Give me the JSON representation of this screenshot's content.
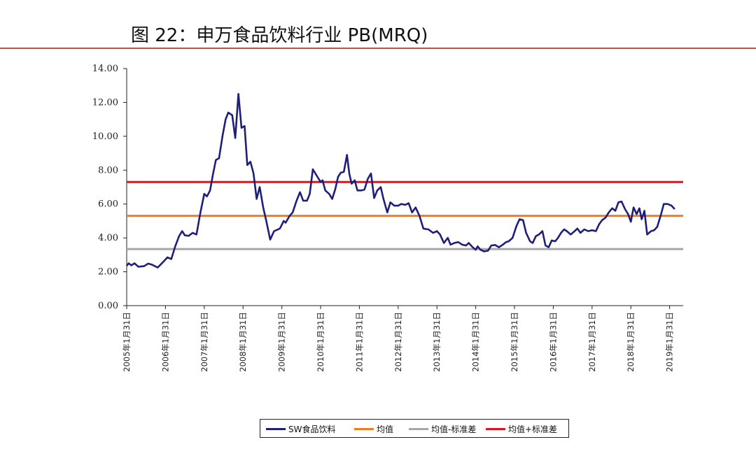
{
  "title": "图 22：申万食品饮料行业 PB(MRQ)",
  "colors": {
    "title_rule": "#c0504d",
    "sw": "#1f1f7a",
    "mean": "#f47c20",
    "mean_minus": "#a6a6a6",
    "mean_plus": "#e0141e"
  },
  "chart_data": {
    "type": "line",
    "title": "图 22：申万食品饮料行业 PB(MRQ)",
    "xlabel": "",
    "ylabel": "",
    "ylim": [
      0,
      14
    ],
    "xlim": [
      2005.0,
      2019.35
    ],
    "yticks": [
      "0.00",
      "2.00",
      "4.00",
      "6.00",
      "8.00",
      "10.00",
      "12.00",
      "14.00"
    ],
    "xticks": [
      {
        "t": 2005,
        "label": "2005年1月31日"
      },
      {
        "t": 2006,
        "label": "2006年1月31日"
      },
      {
        "t": 2007,
        "label": "2007年1月31日"
      },
      {
        "t": 2008,
        "label": "2008年1月31日"
      },
      {
        "t": 2009,
        "label": "2009年1月31日"
      },
      {
        "t": 2010,
        "label": "2010年1月31日"
      },
      {
        "t": 2011,
        "label": "2011年1月31日"
      },
      {
        "t": 2012,
        "label": "2012年1月31日"
      },
      {
        "t": 2013,
        "label": "2013年1月31日"
      },
      {
        "t": 2014,
        "label": "2014年1月31日"
      },
      {
        "t": 2015,
        "label": "2015年1月31日"
      },
      {
        "t": 2016,
        "label": "2016年1月31日"
      },
      {
        "t": 2017,
        "label": "2017年1月31日"
      },
      {
        "t": 2018,
        "label": "2018年1月31日"
      },
      {
        "t": 2019,
        "label": "2019年1月31日"
      }
    ],
    "legend_position": "bottom",
    "grid": false,
    "series": [
      {
        "name": "SW食品饮料",
        "color": "#1f1f7a",
        "points": [
          [
            2005.0,
            2.35
          ],
          [
            2005.05,
            2.5
          ],
          [
            2005.12,
            2.38
          ],
          [
            2005.2,
            2.5
          ],
          [
            2005.3,
            2.3
          ],
          [
            2005.45,
            2.33
          ],
          [
            2005.55,
            2.48
          ],
          [
            2005.65,
            2.42
          ],
          [
            2005.8,
            2.25
          ],
          [
            2005.95,
            2.6
          ],
          [
            2006.05,
            2.85
          ],
          [
            2006.15,
            2.75
          ],
          [
            2006.25,
            3.5
          ],
          [
            2006.35,
            4.1
          ],
          [
            2006.43,
            4.4
          ],
          [
            2006.5,
            4.15
          ],
          [
            2006.6,
            4.12
          ],
          [
            2006.7,
            4.3
          ],
          [
            2006.8,
            4.2
          ],
          [
            2006.9,
            5.5
          ],
          [
            2007.0,
            6.6
          ],
          [
            2007.07,
            6.45
          ],
          [
            2007.15,
            6.8
          ],
          [
            2007.22,
            7.7
          ],
          [
            2007.3,
            8.6
          ],
          [
            2007.38,
            8.7
          ],
          [
            2007.47,
            10.0
          ],
          [
            2007.55,
            11.0
          ],
          [
            2007.62,
            11.4
          ],
          [
            2007.72,
            11.25
          ],
          [
            2007.8,
            9.9
          ],
          [
            2007.88,
            12.5
          ],
          [
            2007.96,
            10.5
          ],
          [
            2008.04,
            10.6
          ],
          [
            2008.11,
            8.3
          ],
          [
            2008.19,
            8.5
          ],
          [
            2008.27,
            7.8
          ],
          [
            2008.35,
            6.3
          ],
          [
            2008.43,
            7.0
          ],
          [
            2008.52,
            5.8
          ],
          [
            2008.6,
            5.0
          ],
          [
            2008.7,
            3.9
          ],
          [
            2008.8,
            4.4
          ],
          [
            2008.95,
            4.55
          ],
          [
            2009.05,
            5.0
          ],
          [
            2009.1,
            4.9
          ],
          [
            2009.2,
            5.3
          ],
          [
            2009.28,
            5.5
          ],
          [
            2009.38,
            6.2
          ],
          [
            2009.47,
            6.7
          ],
          [
            2009.55,
            6.2
          ],
          [
            2009.65,
            6.2
          ],
          [
            2009.72,
            6.6
          ],
          [
            2009.8,
            8.05
          ],
          [
            2009.92,
            7.6
          ],
          [
            2010.0,
            7.3
          ],
          [
            2010.05,
            7.4
          ],
          [
            2010.12,
            6.8
          ],
          [
            2010.22,
            6.6
          ],
          [
            2010.3,
            6.3
          ],
          [
            2010.38,
            6.9
          ],
          [
            2010.45,
            7.6
          ],
          [
            2010.52,
            7.85
          ],
          [
            2010.6,
            7.9
          ],
          [
            2010.68,
            8.9
          ],
          [
            2010.74,
            7.8
          ],
          [
            2010.8,
            7.2
          ],
          [
            2010.88,
            7.4
          ],
          [
            2010.95,
            6.8
          ],
          [
            2011.05,
            6.8
          ],
          [
            2011.13,
            6.85
          ],
          [
            2011.22,
            7.5
          ],
          [
            2011.3,
            7.8
          ],
          [
            2011.38,
            6.35
          ],
          [
            2011.46,
            6.8
          ],
          [
            2011.55,
            7.0
          ],
          [
            2011.62,
            6.3
          ],
          [
            2011.72,
            5.5
          ],
          [
            2011.8,
            6.1
          ],
          [
            2011.9,
            5.9
          ],
          [
            2012.0,
            5.9
          ],
          [
            2012.08,
            6.0
          ],
          [
            2012.18,
            5.95
          ],
          [
            2012.27,
            6.05
          ],
          [
            2012.36,
            5.5
          ],
          [
            2012.45,
            5.8
          ],
          [
            2012.55,
            5.3
          ],
          [
            2012.65,
            4.55
          ],
          [
            2012.78,
            4.5
          ],
          [
            2012.9,
            4.3
          ],
          [
            2013.0,
            4.4
          ],
          [
            2013.08,
            4.2
          ],
          [
            2013.18,
            3.7
          ],
          [
            2013.28,
            4.0
          ],
          [
            2013.35,
            3.6
          ],
          [
            2013.45,
            3.7
          ],
          [
            2013.55,
            3.75
          ],
          [
            2013.65,
            3.6
          ],
          [
            2013.75,
            3.55
          ],
          [
            2013.82,
            3.7
          ],
          [
            2013.92,
            3.45
          ],
          [
            2014.0,
            3.3
          ],
          [
            2014.05,
            3.5
          ],
          [
            2014.12,
            3.3
          ],
          [
            2014.22,
            3.2
          ],
          [
            2014.32,
            3.25
          ],
          [
            2014.4,
            3.55
          ],
          [
            2014.5,
            3.58
          ],
          [
            2014.6,
            3.45
          ],
          [
            2014.7,
            3.6
          ],
          [
            2014.78,
            3.75
          ],
          [
            2014.85,
            3.8
          ],
          [
            2014.95,
            4.0
          ],
          [
            2015.05,
            4.7
          ],
          [
            2015.13,
            5.1
          ],
          [
            2015.22,
            5.05
          ],
          [
            2015.3,
            4.3
          ],
          [
            2015.4,
            3.8
          ],
          [
            2015.47,
            3.7
          ],
          [
            2015.55,
            4.1
          ],
          [
            2015.63,
            4.2
          ],
          [
            2015.72,
            4.4
          ],
          [
            2015.8,
            3.55
          ],
          [
            2015.88,
            3.45
          ],
          [
            2015.96,
            3.85
          ],
          [
            2016.05,
            3.8
          ],
          [
            2016.12,
            4.0
          ],
          [
            2016.2,
            4.3
          ],
          [
            2016.28,
            4.5
          ],
          [
            2016.35,
            4.4
          ],
          [
            2016.45,
            4.2
          ],
          [
            2016.55,
            4.4
          ],
          [
            2016.62,
            4.55
          ],
          [
            2016.7,
            4.3
          ],
          [
            2016.8,
            4.5
          ],
          [
            2016.9,
            4.4
          ],
          [
            2017.0,
            4.45
          ],
          [
            2017.1,
            4.4
          ],
          [
            2017.18,
            4.8
          ],
          [
            2017.26,
            5.05
          ],
          [
            2017.35,
            5.2
          ],
          [
            2017.43,
            5.5
          ],
          [
            2017.52,
            5.75
          ],
          [
            2017.6,
            5.6
          ],
          [
            2017.68,
            6.1
          ],
          [
            2017.76,
            6.15
          ],
          [
            2017.85,
            5.7
          ],
          [
            2017.93,
            5.4
          ],
          [
            2018.0,
            4.95
          ],
          [
            2018.07,
            5.8
          ],
          [
            2018.15,
            5.4
          ],
          [
            2018.22,
            5.75
          ],
          [
            2018.28,
            5.1
          ],
          [
            2018.35,
            5.6
          ],
          [
            2018.42,
            4.2
          ],
          [
            2018.52,
            4.4
          ],
          [
            2018.6,
            4.45
          ],
          [
            2018.68,
            4.65
          ],
          [
            2018.78,
            5.4
          ],
          [
            2018.85,
            6.0
          ],
          [
            2018.95,
            6.0
          ],
          [
            2019.05,
            5.9
          ],
          [
            2019.13,
            5.7
          ]
        ]
      },
      {
        "name": "均值",
        "color": "#f47c20",
        "value": 5.3
      },
      {
        "name": "均值-标准差",
        "color": "#a6a6a6",
        "value": 3.34
      },
      {
        "name": "均值+标准差",
        "color": "#e0141e",
        "value": 7.3
      }
    ]
  }
}
